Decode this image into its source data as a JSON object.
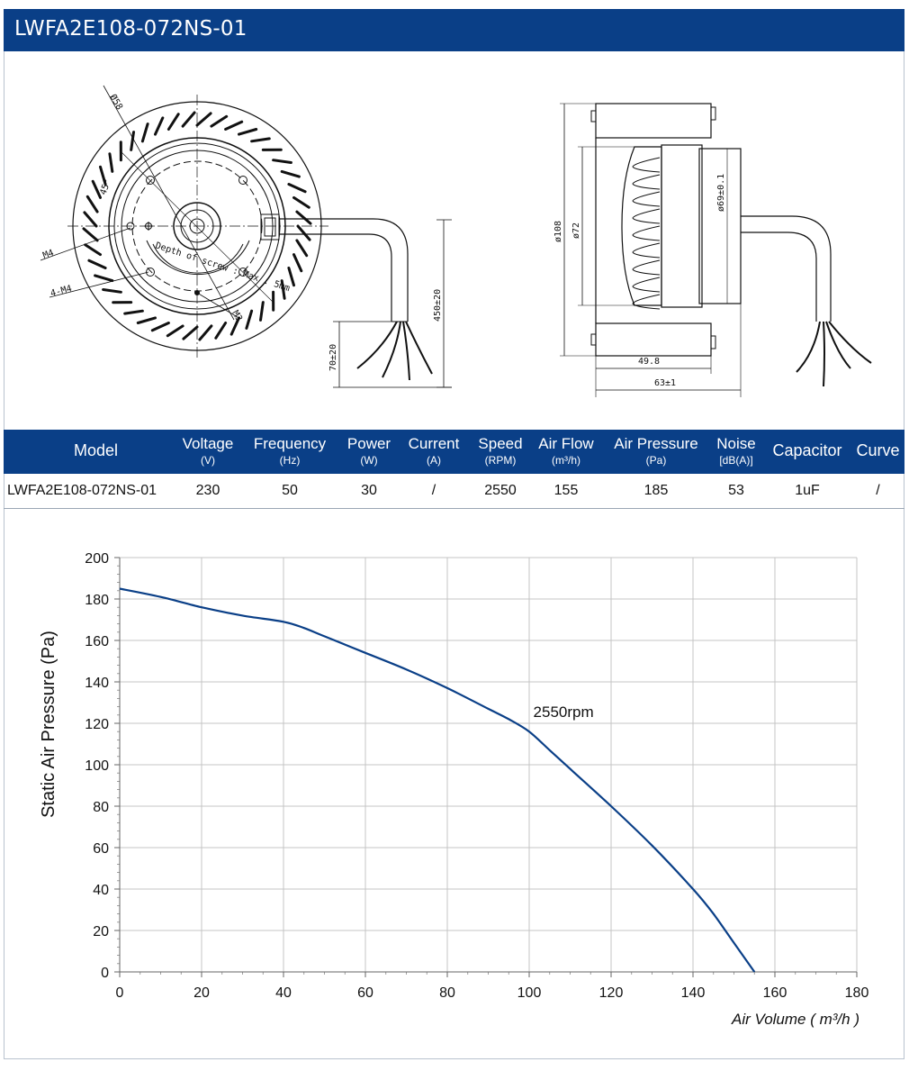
{
  "title": "LWFA2E108-072NS-01",
  "drawing": {
    "front": {
      "d58": "Ø58",
      "angle": "45°",
      "m4": "M4",
      "m4x4": "4-M4",
      "m3": "M3",
      "screw_note": "Depth of screw : Max : 5mm",
      "lead_len": "450±20",
      "strip_len": "70±20"
    },
    "side": {
      "d108": "ø108",
      "d72": "ø72",
      "d69": "ø69±0.1",
      "w498": "49.8",
      "w63": "63±1"
    }
  },
  "spec": {
    "headers": [
      {
        "label": "Model",
        "unit": ""
      },
      {
        "label": "Voltage",
        "unit": "(V)"
      },
      {
        "label": "Frequency",
        "unit": "(Hz)"
      },
      {
        "label": "Power",
        "unit": "(W)"
      },
      {
        "label": "Current",
        "unit": "(A)"
      },
      {
        "label": "Speed",
        "unit": "(RPM)"
      },
      {
        "label": "Air Flow",
        "unit": "(m³/h)"
      },
      {
        "label": "Air Pressure",
        "unit": "(Pa)"
      },
      {
        "label": "Noise",
        "unit": "[dB(A)]"
      },
      {
        "label": "Capacitor",
        "unit": ""
      },
      {
        "label": "Curve",
        "unit": ""
      }
    ],
    "row": [
      "LWFA2E108-072NS-01",
      "230",
      "50",
      "30",
      "/",
      "2550",
      "155",
      "185",
      "53",
      "1uF",
      "/"
    ]
  },
  "chart_data": {
    "type": "line",
    "xlabel": "Air Volume ( m³/h )",
    "ylabel": "Static Air Pressure  (Pa)",
    "xlim": [
      0,
      180
    ],
    "ylim": [
      0,
      200
    ],
    "xticks": [
      "0",
      "20",
      "40",
      "60",
      "80",
      "100",
      "120",
      "140",
      "160",
      "180"
    ],
    "yticks": [
      "0",
      "20",
      "40",
      "60",
      "80",
      "100",
      "120",
      "140",
      "160",
      "180",
      "200"
    ],
    "grid": true,
    "line_color": "#0a3f87",
    "series": [
      {
        "name": "2550rpm",
        "x": [
          0,
          10,
          20,
          30,
          40,
          45,
          50,
          60,
          70,
          80,
          90,
          95,
          100,
          105,
          110,
          120,
          130,
          140,
          145,
          150,
          155
        ],
        "y": [
          185,
          181,
          176,
          172,
          169,
          166,
          162,
          154,
          146,
          137,
          127,
          122,
          116,
          107,
          98,
          80,
          61,
          40,
          28,
          14,
          0
        ]
      }
    ],
    "annotation": {
      "text": "2550rpm",
      "x": 101,
      "y": 123
    }
  }
}
